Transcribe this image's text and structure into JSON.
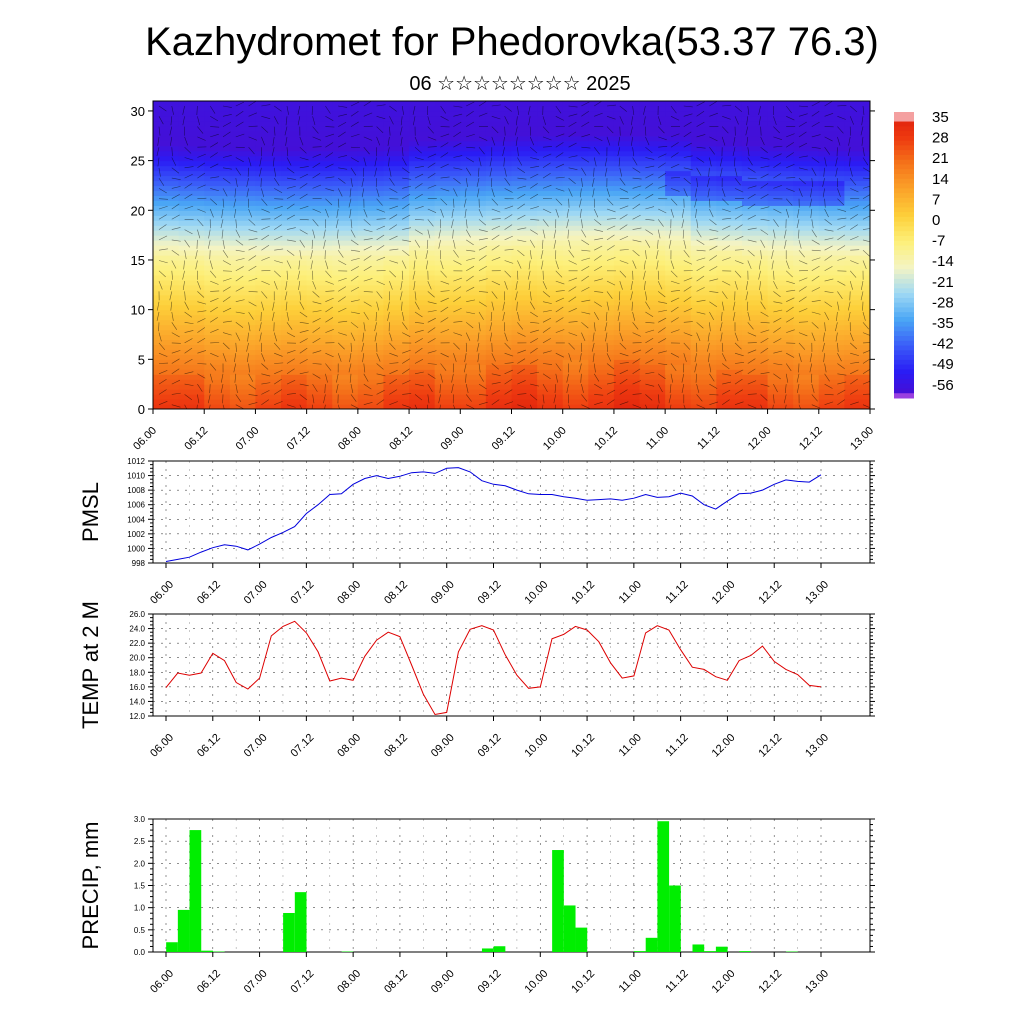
{
  "title": "Kazhydromet for Phedorovka(53.37 76.3)",
  "subtitle": "06 ☆☆☆☆☆☆☆☆ 2025",
  "x_tick_labels": [
    "06.00",
    "06.12",
    "07.00",
    "07.12",
    "08.00",
    "08.12",
    "09.00",
    "09.12",
    "10.00",
    "10.12",
    "11.00",
    "11.12",
    "12.00",
    "12.12",
    "13.00"
  ],
  "colors": {
    "pmsl_line": "#0000dd",
    "temp_line": "#dd0000",
    "precip_bar": "#00ee00",
    "grid": "#000000"
  },
  "chart_data": [
    {
      "type": "heatmap",
      "title": "",
      "ylabel": "",
      "ylim": [
        0,
        31
      ],
      "y_ticks": [
        "0",
        "5",
        "10",
        "15",
        "20",
        "25",
        "30"
      ],
      "colorbar_labels": [
        "35",
        "28",
        "21",
        "14",
        "7",
        "0",
        "-7",
        "-14",
        "-21",
        "-28",
        "-35",
        "-42",
        "-49",
        "-56"
      ],
      "colorbar_range": [
        -60,
        38
      ],
      "colormap": [
        "#4b0ccf",
        "#2a1cf5",
        "#3a5cf8",
        "#4aa6f5",
        "#9ed8f4",
        "#f4f4c4",
        "#fdf07a",
        "#fdd03a",
        "#fba42a",
        "#f5741a",
        "#ee3a10",
        "#dc1a0c"
      ],
      "description_levels": "temperature vs altitude level, warm near ground, cold aloft"
    },
    {
      "type": "line",
      "ylabel": "PMSL",
      "ylim": [
        998,
        1012
      ],
      "y_ticks": [
        "998",
        "1000",
        "1002",
        "1004",
        "1006",
        "1008",
        "1010",
        "1012"
      ],
      "x_hours": [
        0,
        3,
        6,
        9,
        12,
        15,
        18,
        21,
        24,
        27,
        30,
        33,
        36,
        39,
        42,
        45,
        48,
        51,
        54,
        57,
        60,
        63,
        66,
        69,
        72,
        75,
        78,
        81,
        84,
        87,
        90,
        93,
        96,
        99,
        102,
        105,
        108,
        111,
        114,
        117,
        120,
        123,
        126,
        129,
        132,
        135,
        138,
        141,
        144,
        147,
        150,
        153,
        156,
        159,
        162,
        165,
        168
      ],
      "values": [
        998.2,
        998.5,
        998.8,
        999.5,
        1000.1,
        1000.5,
        1000.3,
        999.8,
        1000.6,
        1001.5,
        1002.2,
        1003.0,
        1004.8,
        1006.0,
        1007.4,
        1007.5,
        1008.8,
        1009.6,
        1010.0,
        1009.6,
        1009.9,
        1010.4,
        1010.5,
        1010.3,
        1011.0,
        1011.1,
        1010.5,
        1009.3,
        1008.8,
        1008.6,
        1008.0,
        1007.5,
        1007.4,
        1007.4,
        1007.1,
        1006.9,
        1006.6,
        1006.7,
        1006.8,
        1006.6,
        1006.9,
        1007.4,
        1007.0,
        1007.1,
        1007.6,
        1007.2,
        1006.0,
        1005.4,
        1006.5,
        1007.5,
        1007.6,
        1008.0,
        1008.8,
        1009.4,
        1009.2,
        1009.1,
        1010.1
      ],
      "series": [
        {
          "values": []
        }
      ]
    },
    {
      "type": "line",
      "ylabel": "TEMP at 2 M",
      "ylim": [
        12.0,
        26.0
      ],
      "y_ticks": [
        "12.0",
        "14.0",
        "16.0",
        "18.0",
        "20.0",
        "22.0",
        "24.0",
        "26.0"
      ],
      "x_hours": [
        0,
        3,
        6,
        9,
        12,
        15,
        18,
        21,
        24,
        27,
        30,
        33,
        36,
        39,
        42,
        45,
        48,
        51,
        54,
        57,
        60,
        63,
        66,
        69,
        72,
        75,
        78,
        81,
        84,
        87,
        90,
        93,
        96,
        99,
        102,
        105,
        108,
        111,
        114,
        117,
        120,
        123,
        126,
        129,
        132,
        135,
        138,
        141,
        144,
        147,
        150,
        153,
        156,
        159,
        162,
        165,
        168
      ],
      "values": [
        15.9,
        17.9,
        17.6,
        17.9,
        20.6,
        19.6,
        16.6,
        15.7,
        17.2,
        23.0,
        24.3,
        25.0,
        23.4,
        20.8,
        16.8,
        17.2,
        16.9,
        20.2,
        22.4,
        23.5,
        22.9,
        19.0,
        15.0,
        12.2,
        12.5,
        20.8,
        23.9,
        24.4,
        23.8,
        20.4,
        17.6,
        15.8,
        16.0,
        22.6,
        23.2,
        24.3,
        23.8,
        22.2,
        19.3,
        17.2,
        17.5,
        23.4,
        24.4,
        23.8,
        21.1,
        18.7,
        18.4,
        17.4,
        16.9,
        19.6,
        20.3,
        21.6,
        19.5,
        18.4,
        17.7,
        16.2,
        16.0
      ],
      "series": [
        {
          "values": []
        }
      ]
    },
    {
      "type": "bar",
      "ylabel": "PRECIP, mm",
      "ylim": [
        0,
        3.0
      ],
      "y_ticks": [
        "0.0",
        "0.5",
        "1.0",
        "1.5",
        "2.0",
        "2.5",
        "3.0"
      ],
      "bar_hours": [
        0,
        3,
        6,
        9,
        12,
        30,
        33,
        45,
        81,
        84,
        99,
        102,
        105,
        120,
        123,
        126,
        129,
        135,
        138,
        141,
        147,
        159
      ],
      "values": [
        0.22,
        0.95,
        2.75,
        0.03,
        0.01,
        0.88,
        1.35,
        0.01,
        0.08,
        0.13,
        2.3,
        1.05,
        0.55,
        0.02,
        0.32,
        2.95,
        1.5,
        0.17,
        0.02,
        0.12,
        0.02,
        0.01
      ]
    }
  ]
}
